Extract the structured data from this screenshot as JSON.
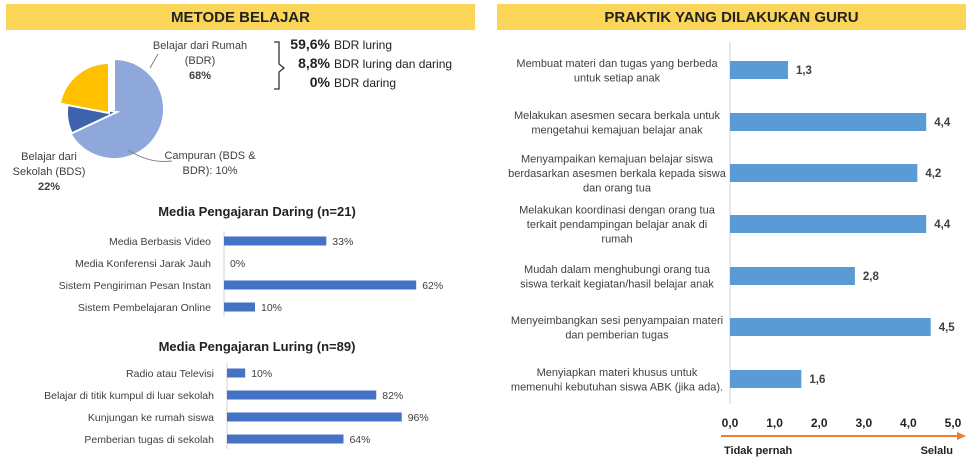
{
  "left_panel": {
    "banner_title": "METODE BELAJAR",
    "pie": {
      "slices": [
        {
          "label_lines": [
            "Belajar dari Rumah",
            "(BDR)"
          ],
          "pct_label": "68%",
          "value": 68,
          "color": "#8fa8db"
        },
        {
          "label_lines": [
            "Campuran (BDS &",
            "BDR): 10%"
          ],
          "pct_label": "",
          "value": 10,
          "color": "#3e63ad"
        },
        {
          "label_lines": [
            "Belajar dari",
            "Sekolah (BDS)"
          ],
          "pct_label": "22%",
          "value": 22,
          "color": "#ffc000"
        }
      ],
      "breakdown": [
        {
          "pct": "59,6%",
          "text": "BDR luring"
        },
        {
          "pct": "8,8%",
          "text": "BDR luring dan daring"
        },
        {
          "pct": "0%",
          "text": "BDR daring"
        }
      ]
    },
    "daring": {
      "title": "Media Pengajaran Daring (n=21)",
      "rows": [
        {
          "label": "Media Berbasis Video",
          "value": 33,
          "value_label": "33%"
        },
        {
          "label": "Media Konferensi Jarak Jauh",
          "value": 0,
          "value_label": "0%"
        },
        {
          "label": "Sistem Pengiriman Pesan Instan",
          "value": 62,
          "value_label": "62%"
        },
        {
          "label": "Sistem Pembelajaran Online",
          "value": 10,
          "value_label": "10%"
        }
      ]
    },
    "luring": {
      "title": "Media Pengajaran Luring (n=89)",
      "rows": [
        {
          "label": "Radio atau Televisi",
          "value": 10,
          "value_label": "10%"
        },
        {
          "label": "Belajar di titik kumpul di luar sekolah",
          "value": 82,
          "value_label": "82%"
        },
        {
          "label": "Kunjungan ke rumah siswa",
          "value": 96,
          "value_label": "96%"
        },
        {
          "label": "Pemberian tugas di sekolah",
          "value": 64,
          "value_label": "64%"
        }
      ]
    }
  },
  "right_panel": {
    "banner_title": "PRAKTIK YANG DILAKUKAN GURU",
    "axis_left_label": "Tidak pernah",
    "axis_right_label": "Selalu"
  },
  "chart_data": [
    {
      "type": "pie",
      "title": "METODE BELAJAR",
      "categories": [
        "Belajar dari Rumah (BDR)",
        "Campuran (BDS & BDR)",
        "Belajar dari Sekolah (BDS)"
      ],
      "values": [
        68,
        10,
        22
      ]
    },
    {
      "type": "bar",
      "title": "Media Pengajaran Daring (n=21)",
      "categories": [
        "Media Berbasis Video",
        "Media Konferensi Jarak Jauh",
        "Sistem Pengiriman Pesan Instan",
        "Sistem Pembelajaran Online"
      ],
      "values": [
        33,
        0,
        62,
        10
      ],
      "ylim": [
        0,
        100
      ]
    },
    {
      "type": "bar",
      "title": "Media Pengajaran Luring (n=89)",
      "categories": [
        "Radio atau Televisi",
        "Belajar di titik kumpul di luar sekolah",
        "Kunjungan ke rumah siswa",
        "Pemberian tugas di sekolah"
      ],
      "values": [
        10,
        82,
        96,
        64
      ],
      "ylim": [
        0,
        100
      ]
    },
    {
      "type": "bar",
      "title": "PRAKTIK YANG DILAKUKAN GURU",
      "categories": [
        [
          "Membuat materi dan tugas yang berbeda",
          "untuk setiap anak"
        ],
        [
          "Melakukan asesmen secara berkala untuk",
          "mengetahui kemajuan belajar anak"
        ],
        [
          "Menyampaikan kemajuan belajar siswa",
          "berdasarkan asesmen berkala kepada siswa",
          "dan orang tua"
        ],
        [
          "Melakukan koordinasi dengan orang tua",
          "terkait pendampingan belajar anak di",
          "rumah"
        ],
        [
          "Mudah dalam menghubungi orang tua",
          "siswa terkait kegiatan/hasil belajar anak"
        ],
        [
          "Menyeimbangkan sesi penyampaian materi",
          "dan pemberian tugas"
        ],
        [
          "Menyiapkan materi khusus untuk",
          "memenuhi kebutuhan siswa ABK (jika ada)."
        ]
      ],
      "values": [
        1.3,
        4.4,
        4.2,
        4.4,
        2.8,
        4.5,
        1.6
      ],
      "value_labels": [
        "1,3",
        "4,4",
        "4,2",
        "4,4",
        "2,8",
        "4,5",
        "1,6"
      ],
      "xlim": [
        0,
        5
      ],
      "ticks": [
        "0,0",
        "1,0",
        "2,0",
        "3,0",
        "4,0",
        "5,0"
      ]
    }
  ]
}
